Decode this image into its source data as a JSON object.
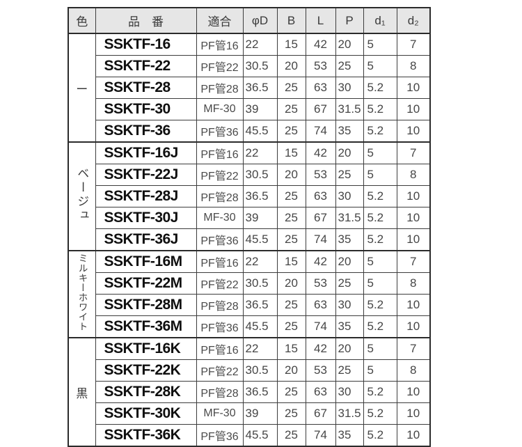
{
  "table": {
    "columns": [
      {
        "key": "color",
        "label": "色"
      },
      {
        "key": "product",
        "label": "品　番"
      },
      {
        "key": "fit",
        "label": "適合"
      },
      {
        "key": "phiD",
        "label": "φD"
      },
      {
        "key": "b",
        "label": "B"
      },
      {
        "key": "l",
        "label": "L"
      },
      {
        "key": "p",
        "label": "P"
      },
      {
        "key": "d1",
        "label": "d₁"
      },
      {
        "key": "d2",
        "label": "d₂"
      }
    ],
    "groups": [
      {
        "color": "ー",
        "rows": [
          {
            "product": "SSKTF-16",
            "fit": "PF管16",
            "phiD": "22",
            "b": "15",
            "l": "42",
            "p": "20",
            "d1": "5",
            "d2": "7"
          },
          {
            "product": "SSKTF-22",
            "fit": "PF管22",
            "phiD": "30.5",
            "b": "20",
            "l": "53",
            "p": "25",
            "d1": "5",
            "d2": "8"
          },
          {
            "product": "SSKTF-28",
            "fit": "PF管28",
            "phiD": "36.5",
            "b": "25",
            "l": "63",
            "p": "30",
            "d1": "5.2",
            "d2": "10"
          },
          {
            "product": "SSKTF-30",
            "fit": "MF-30",
            "phiD": "39",
            "b": "25",
            "l": "67",
            "p": "31.5",
            "d1": "5.2",
            "d2": "10"
          },
          {
            "product": "SSKTF-36",
            "fit": "PF管36",
            "phiD": "45.5",
            "b": "25",
            "l": "74",
            "p": "35",
            "d1": "5.2",
            "d2": "10"
          }
        ]
      },
      {
        "color": "ベージュ",
        "rows": [
          {
            "product": "SSKTF-16J",
            "fit": "PF管16",
            "phiD": "22",
            "b": "15",
            "l": "42",
            "p": "20",
            "d1": "5",
            "d2": "7"
          },
          {
            "product": "SSKTF-22J",
            "fit": "PF管22",
            "phiD": "30.5",
            "b": "20",
            "l": "53",
            "p": "25",
            "d1": "5",
            "d2": "8"
          },
          {
            "product": "SSKTF-28J",
            "fit": "PF管28",
            "phiD": "36.5",
            "b": "25",
            "l": "63",
            "p": "30",
            "d1": "5.2",
            "d2": "10"
          },
          {
            "product": "SSKTF-30J",
            "fit": "MF-30",
            "phiD": "39",
            "b": "25",
            "l": "67",
            "p": "31.5",
            "d1": "5.2",
            "d2": "10"
          },
          {
            "product": "SSKTF-36J",
            "fit": "PF管36",
            "phiD": "45.5",
            "b": "25",
            "l": "74",
            "p": "35",
            "d1": "5.2",
            "d2": "10"
          }
        ]
      },
      {
        "color": "ミルキーホワイト",
        "rows": [
          {
            "product": "SSKTF-16M",
            "fit": "PF管16",
            "phiD": "22",
            "b": "15",
            "l": "42",
            "p": "20",
            "d1": "5",
            "d2": "7"
          },
          {
            "product": "SSKTF-22M",
            "fit": "PF管22",
            "phiD": "30.5",
            "b": "20",
            "l": "53",
            "p": "25",
            "d1": "5",
            "d2": "8"
          },
          {
            "product": "SSKTF-28M",
            "fit": "PF管28",
            "phiD": "36.5",
            "b": "25",
            "l": "63",
            "p": "30",
            "d1": "5.2",
            "d2": "10"
          },
          {
            "product": "SSKTF-36M",
            "fit": "PF管36",
            "phiD": "45.5",
            "b": "25",
            "l": "74",
            "p": "35",
            "d1": "5.2",
            "d2": "10"
          }
        ]
      },
      {
        "color": "黒",
        "rows": [
          {
            "product": "SSKTF-16K",
            "fit": "PF管16",
            "phiD": "22",
            "b": "15",
            "l": "42",
            "p": "20",
            "d1": "5",
            "d2": "7"
          },
          {
            "product": "SSKTF-22K",
            "fit": "PF管22",
            "phiD": "30.5",
            "b": "20",
            "l": "53",
            "p": "25",
            "d1": "5",
            "d2": "8"
          },
          {
            "product": "SSKTF-28K",
            "fit": "PF管28",
            "phiD": "36.5",
            "b": "25",
            "l": "63",
            "p": "30",
            "d1": "5.2",
            "d2": "10"
          },
          {
            "product": "SSKTF-30K",
            "fit": "MF-30",
            "phiD": "39",
            "b": "25",
            "l": "67",
            "p": "31.5",
            "d1": "5.2",
            "d2": "10"
          },
          {
            "product": "SSKTF-36K",
            "fit": "PF管36",
            "phiD": "45.5",
            "b": "25",
            "l": "74",
            "p": "35",
            "d1": "5.2",
            "d2": "10"
          }
        ]
      }
    ]
  }
}
